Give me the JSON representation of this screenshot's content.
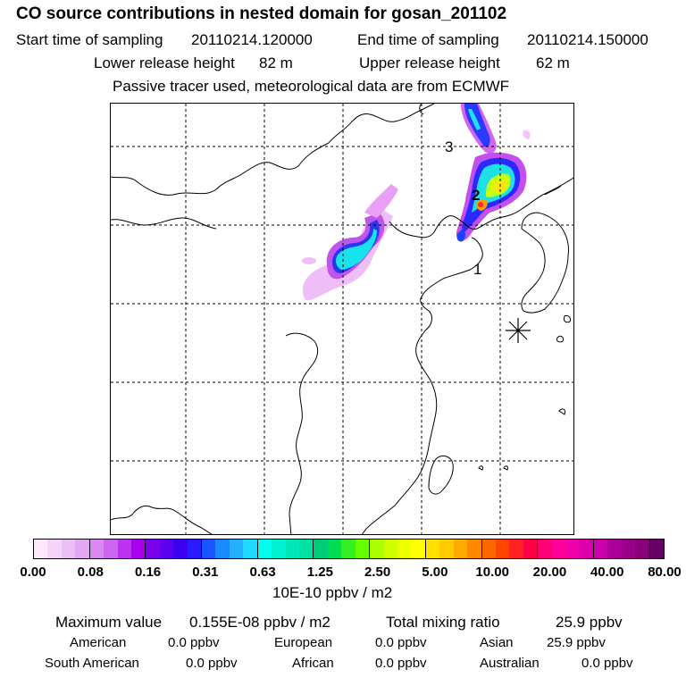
{
  "header": {
    "title": "CO  source contributions in nested domain for gosan_201102",
    "start_label": "Start time of sampling",
    "start_value": "20110214.120000",
    "end_label": "End time of sampling",
    "end_value": "20110214.150000",
    "lower_label": "Lower release height",
    "lower_value": "82 m",
    "upper_label": "Upper release height",
    "upper_value": "62 m",
    "note": "Passive tracer used, meteorological data are from ECMWF"
  },
  "map": {
    "markers": [
      "1",
      "2",
      "3"
    ],
    "receptor_icon": "asterisk-receptor-icon"
  },
  "colorbar": {
    "ticks": [
      "0.00",
      "0.08",
      "0.16",
      "0.31",
      "0.63",
      "1.25",
      "2.50",
      "5.00",
      "10.00",
      "20.00",
      "40.00",
      "80.00"
    ],
    "unit": "10E-10 ppbv / m2",
    "colors": [
      "#fbe8fb",
      "#f3d4f8",
      "#ebbef6",
      "#e3a8f4",
      "#d98af2",
      "#cc66ee",
      "#bb33ee",
      "#a800ee",
      "#7a00ee",
      "#5a00ee",
      "#3a00f0",
      "#2a1aff",
      "#1a55ff",
      "#1a8aff",
      "#22b0ff",
      "#20d8ff",
      "#00ffee",
      "#00f0d0",
      "#00e8b8",
      "#00e0a0",
      "#00cc77",
      "#00dd55",
      "#33ee22",
      "#66ff00",
      "#aaff00",
      "#ccff00",
      "#eeff00",
      "#ffff00",
      "#ffe000",
      "#ffcc00",
      "#ffaa00",
      "#ff8800",
      "#ff6600",
      "#ff4400",
      "#ff2222",
      "#ff0044",
      "#ff0077",
      "#ff0099",
      "#ee00aa",
      "#dd00aa",
      "#cc00aa",
      "#aa0099",
      "#990088",
      "#880077",
      "#660066"
    ]
  },
  "summary": {
    "max_label": "Maximum value",
    "max_value": "0.155E-08 ppbv / m2",
    "total_label": "Total mixing ratio",
    "total_value": "25.9 ppbv",
    "regions": [
      {
        "name": "American",
        "value": "0.0 ppbv"
      },
      {
        "name": "European",
        "value": "0.0 ppbv"
      },
      {
        "name": "Asian",
        "value": "25.9 ppbv"
      },
      {
        "name": "South American",
        "value": "0.0 ppbv"
      },
      {
        "name": "African",
        "value": "0.0 ppbv"
      },
      {
        "name": "Australian",
        "value": "0.0 ppbv"
      }
    ]
  }
}
